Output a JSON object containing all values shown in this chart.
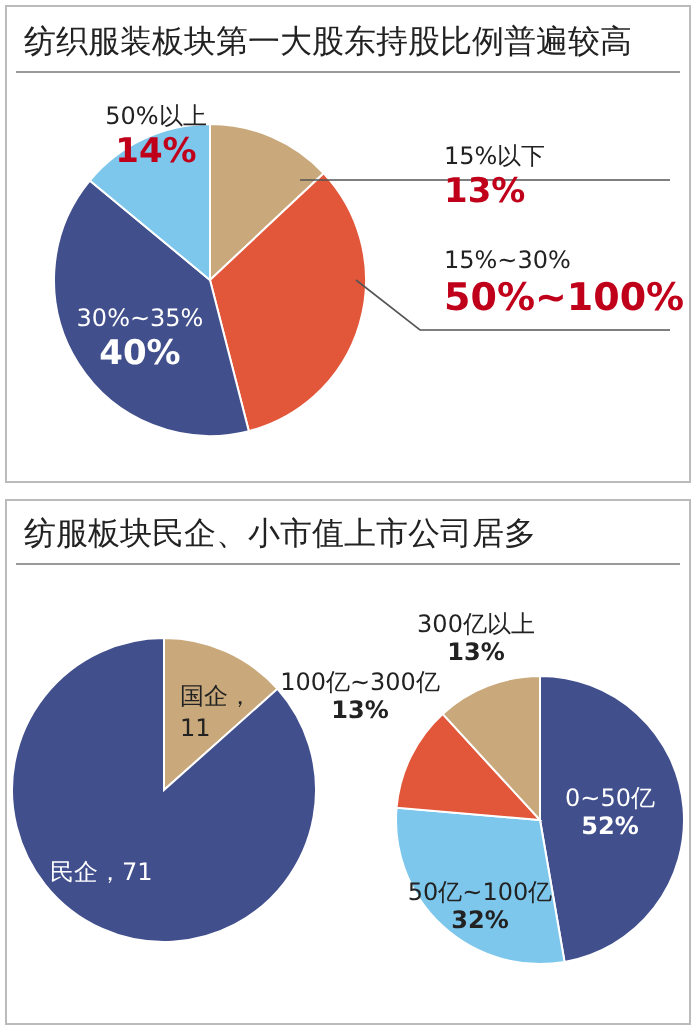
{
  "chart_data": [
    {
      "type": "pie",
      "title": "纺织服装板块第一大股东持股比例普遍较高",
      "categories": [
        "15%以下",
        "15%~30%",
        "30%~35%",
        "50%以上"
      ],
      "values": [
        13,
        33,
        40,
        14
      ],
      "value_labels": [
        "13%",
        null,
        "40%",
        "14%"
      ],
      "annotations": [
        "50%~100%"
      ],
      "colors": [
        "#c9a97b",
        "#e2573a",
        "#414f8c",
        "#7ec7ec"
      ]
    },
    {
      "type": "pie",
      "title": "纺服板块民企、小市值上市公司居多",
      "categories": [
        "国企",
        "民企"
      ],
      "values": [
        11,
        71
      ],
      "value_labels": [
        "，11",
        "，71"
      ],
      "colors": [
        "#c9a97b",
        "#414f8c"
      ]
    },
    {
      "type": "pie",
      "categories": [
        "0~50亿",
        "50亿~100亿",
        "100亿~300亿",
        "300亿以上"
      ],
      "values": [
        52,
        32,
        13,
        13
      ],
      "value_labels": [
        "52%",
        "32%",
        "13%",
        "13%"
      ],
      "colors": [
        "#414f8c",
        "#7ec7ec",
        "#e2573a",
        "#c9a97b"
      ]
    }
  ]
}
